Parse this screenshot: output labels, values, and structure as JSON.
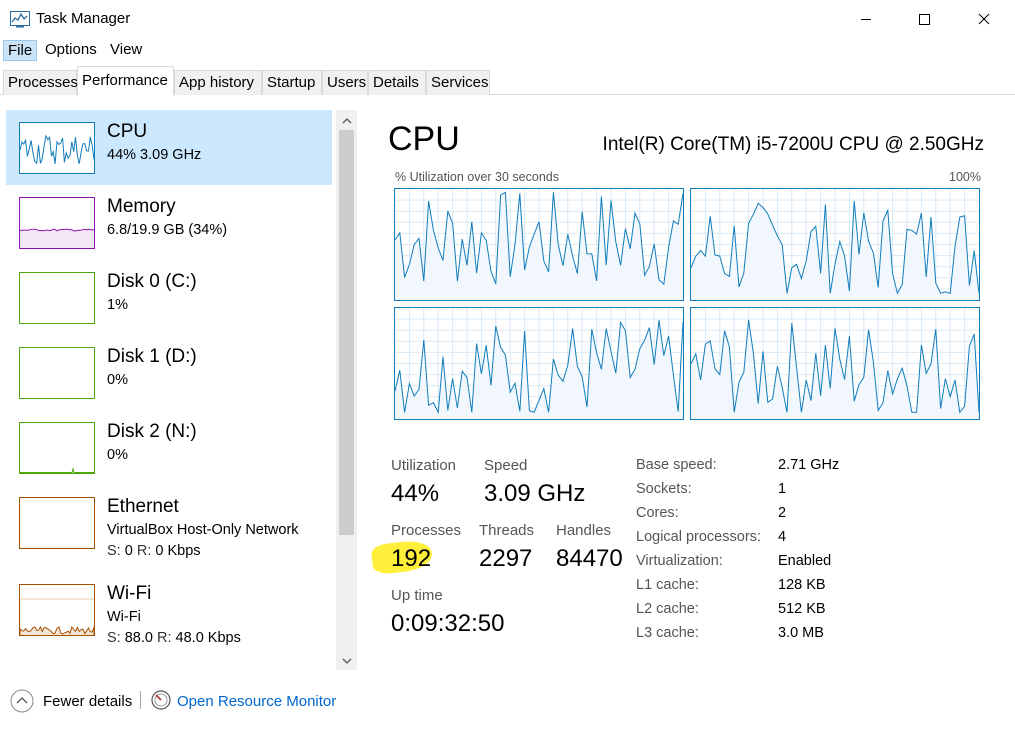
{
  "window": {
    "title": "Task Manager",
    "icon": "task-manager-icon"
  },
  "menu": [
    {
      "label": "File"
    },
    {
      "label": "Options"
    },
    {
      "label": "View"
    }
  ],
  "tabs": [
    {
      "label": "Processes"
    },
    {
      "label": "Performance"
    },
    {
      "label": "App history"
    },
    {
      "label": "Startup"
    },
    {
      "label": "Users"
    },
    {
      "label": "Details"
    },
    {
      "label": "Services"
    }
  ],
  "sidebar": {
    "items": [
      {
        "title": "CPU",
        "sub": "44%  3.09 GHz",
        "color": "#117dbb"
      },
      {
        "title": "Memory",
        "sub": "6.8/19.9 GB (34%)",
        "color": "#8b12ae"
      },
      {
        "title": "Disk 0 (C:)",
        "sub": "1%",
        "color": "#4da60c"
      },
      {
        "title": "Disk 1 (D:)",
        "sub": "0%",
        "color": "#4da60c"
      },
      {
        "title": "Disk 2 (N:)",
        "sub": "0%",
        "color": "#4da60c"
      },
      {
        "title": "Ethernet",
        "sub": "VirtualBox Host-Only Network",
        "s_label": "S:",
        "s_val": "0",
        "r_label": "R:",
        "r_val": "0 Kbps",
        "color": "#a74f01"
      },
      {
        "title": "Wi-Fi",
        "sub": "Wi-Fi",
        "s_label": "S:",
        "s_val": "88.0",
        "r_label": "R:",
        "r_val": "48.0 Kbps",
        "color": "#a74f01"
      }
    ]
  },
  "cpu": {
    "heading": "CPU",
    "model": "Intel(R) Core(TM) i5-7200U CPU @ 2.50GHz",
    "graph_label": "% Utilization over 30 seconds",
    "graph_max": "100%",
    "accent": "#117dbb",
    "utilization_label": "Utilization",
    "utilization": "44%",
    "speed_label": "Speed",
    "speed": "3.09 GHz",
    "processes_label": "Processes",
    "processes": "192",
    "threads_label": "Threads",
    "threads": "2297",
    "handles_label": "Handles",
    "handles": "84470",
    "uptime_label": "Up time",
    "uptime": "0:09:32:50",
    "details": [
      {
        "label": "Base speed:",
        "value": "2.71 GHz"
      },
      {
        "label": "Sockets:",
        "value": "1"
      },
      {
        "label": "Cores:",
        "value": "2"
      },
      {
        "label": "Logical processors:",
        "value": "4"
      },
      {
        "label": "Virtualization:",
        "value": "Enabled"
      },
      {
        "label": "L1 cache:",
        "value": "128 KB"
      },
      {
        "label": "L2 cache:",
        "value": "512 KB"
      },
      {
        "label": "L3 cache:",
        "value": "3.0 MB"
      }
    ]
  },
  "footer": {
    "fewer_details": "Fewer details",
    "open_resource_monitor": "Open Resource Monitor"
  }
}
